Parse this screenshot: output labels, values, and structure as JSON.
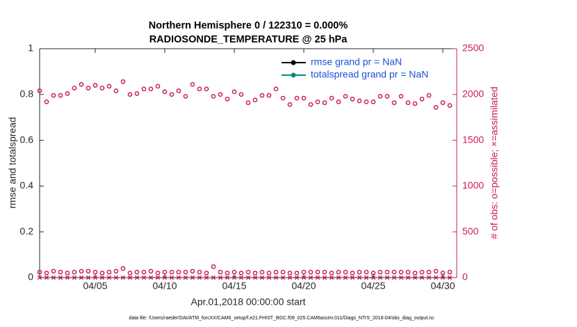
{
  "chart_data": {
    "type": "line",
    "title": "Northern Hemisphere 0 / 122310 = 0.000%",
    "subtitle": "RADIOSONDE_TEMPERATURE @ 25 hPa",
    "xlabel": "Apr.01,2018 00:00:00 start",
    "ylabel": "rmse and totalspread",
    "y2label": "# of obs: o=possible; ×=assimilated",
    "note": "data file: /Users/raeder/DAI/ATM_forcXX/CAM6_setup/f.e21.FHIST_BGC.f09_025.CAM6assim.011/Diags_NTrS_2018-04/obs_diag_output.nc",
    "xlim": [
      0,
      30
    ],
    "xticks": [
      {
        "value": 4,
        "label": "04/05"
      },
      {
        "value": 9,
        "label": "04/10"
      },
      {
        "value": 14,
        "label": "04/15"
      },
      {
        "value": 19,
        "label": "04/20"
      },
      {
        "value": 24,
        "label": "04/25"
      },
      {
        "value": 29,
        "label": "04/30"
      }
    ],
    "ylim": [
      0,
      1
    ],
    "yticks": [
      0,
      0.2,
      0.4,
      0.6,
      0.8,
      1
    ],
    "y2lim": [
      0,
      2500
    ],
    "y2ticks": [
      0,
      500,
      1000,
      1500,
      2000,
      2500
    ],
    "y2color": "#cc1a55",
    "legend": "upper right",
    "x": [
      0,
      0.5,
      1,
      1.5,
      2,
      2.5,
      3,
      3.5,
      4,
      4.5,
      5,
      5.5,
      6,
      6.5,
      7,
      7.5,
      8,
      8.5,
      9,
      9.5,
      10,
      10.5,
      11,
      11.5,
      12,
      12.5,
      13,
      13.5,
      14,
      14.5,
      15,
      15.5,
      16,
      16.5,
      17,
      17.5,
      18,
      18.5,
      19,
      19.5,
      20,
      20.5,
      21,
      21.5,
      22,
      22.5,
      23,
      23.5,
      24,
      24.5,
      25,
      25.5,
      26,
      26.5,
      27,
      27.5,
      28,
      28.5,
      29,
      29.5
    ],
    "series": [
      {
        "name": "rmse grand pr = NaN",
        "color": "#000000",
        "marker": "o",
        "axis": "y",
        "values": [
          null,
          null,
          null,
          null,
          null,
          null,
          null,
          null,
          null,
          null,
          null,
          null,
          null,
          null,
          null,
          null,
          null,
          null,
          null,
          null,
          null,
          null,
          null,
          null,
          null,
          null,
          null,
          null,
          null,
          null,
          null,
          null,
          null,
          null,
          null,
          null,
          null,
          null,
          null,
          null,
          null,
          null,
          null,
          null,
          null,
          null,
          null,
          null,
          null,
          null,
          null,
          null,
          null,
          null,
          null,
          null,
          null,
          null,
          null,
          null
        ]
      },
      {
        "name": "totalspread grand pr = NaN",
        "color": "#0a8a7a",
        "marker": "o",
        "axis": "y",
        "values": [
          null,
          null,
          null,
          null,
          null,
          null,
          null,
          null,
          null,
          null,
          null,
          null,
          null,
          null,
          null,
          null,
          null,
          null,
          null,
          null,
          null,
          null,
          null,
          null,
          null,
          null,
          null,
          null,
          null,
          null,
          null,
          null,
          null,
          null,
          null,
          null,
          null,
          null,
          null,
          null,
          null,
          null,
          null,
          null,
          null,
          null,
          null,
          null,
          null,
          null,
          null,
          null,
          null,
          null,
          null,
          null,
          null,
          null,
          null,
          null
        ]
      },
      {
        "color": "#cc1a55",
        "marker": "o",
        "axis": "y2",
        "values": [
          2040,
          1920,
          1990,
          1990,
          2010,
          2070,
          2110,
          2070,
          2100,
          2070,
          2090,
          2040,
          2140,
          2000,
          2010,
          2060,
          2060,
          2090,
          2030,
          2000,
          2040,
          1980,
          2110,
          2060,
          2060,
          1980,
          2000,
          1950,
          2030,
          2000,
          1910,
          1940,
          1990,
          1990,
          2060,
          1960,
          1890,
          1960,
          1960,
          1890,
          1920,
          1910,
          1960,
          1920,
          1980,
          1950,
          1930,
          1920,
          1920,
          1980,
          1980,
          1910,
          1980,
          1910,
          1900,
          1950,
          1990,
          1860,
          1910,
          1880
        ]
      },
      {
        "color": "#cc1a55",
        "marker": "o",
        "axis": "y2",
        "values": [
          60,
          50,
          70,
          60,
          50,
          60,
          70,
          70,
          60,
          50,
          60,
          70,
          100,
          50,
          60,
          60,
          70,
          50,
          60,
          60,
          60,
          60,
          70,
          60,
          50,
          120,
          60,
          50,
          60,
          50,
          60,
          50,
          60,
          50,
          60,
          60,
          50,
          50,
          60,
          60,
          60,
          60,
          50,
          60,
          60,
          50,
          60,
          60,
          50,
          60,
          60,
          60,
          60,
          60,
          50,
          60,
          60,
          70,
          50,
          60
        ]
      },
      {
        "color": "#cc1a55",
        "marker": "x",
        "axis": "y2",
        "values": [
          0,
          0,
          0,
          0,
          0,
          0,
          0,
          0,
          0,
          0,
          0,
          0,
          0,
          0,
          0,
          0,
          0,
          0,
          0,
          0,
          0,
          0,
          0,
          0,
          0,
          0,
          0,
          0,
          0,
          0,
          0,
          0,
          0,
          0,
          0,
          0,
          0,
          0,
          0,
          0,
          0,
          0,
          0,
          0,
          0,
          0,
          0,
          0,
          0,
          0,
          0,
          0,
          0,
          0,
          0,
          0,
          0,
          0,
          0,
          0
        ]
      }
    ]
  }
}
